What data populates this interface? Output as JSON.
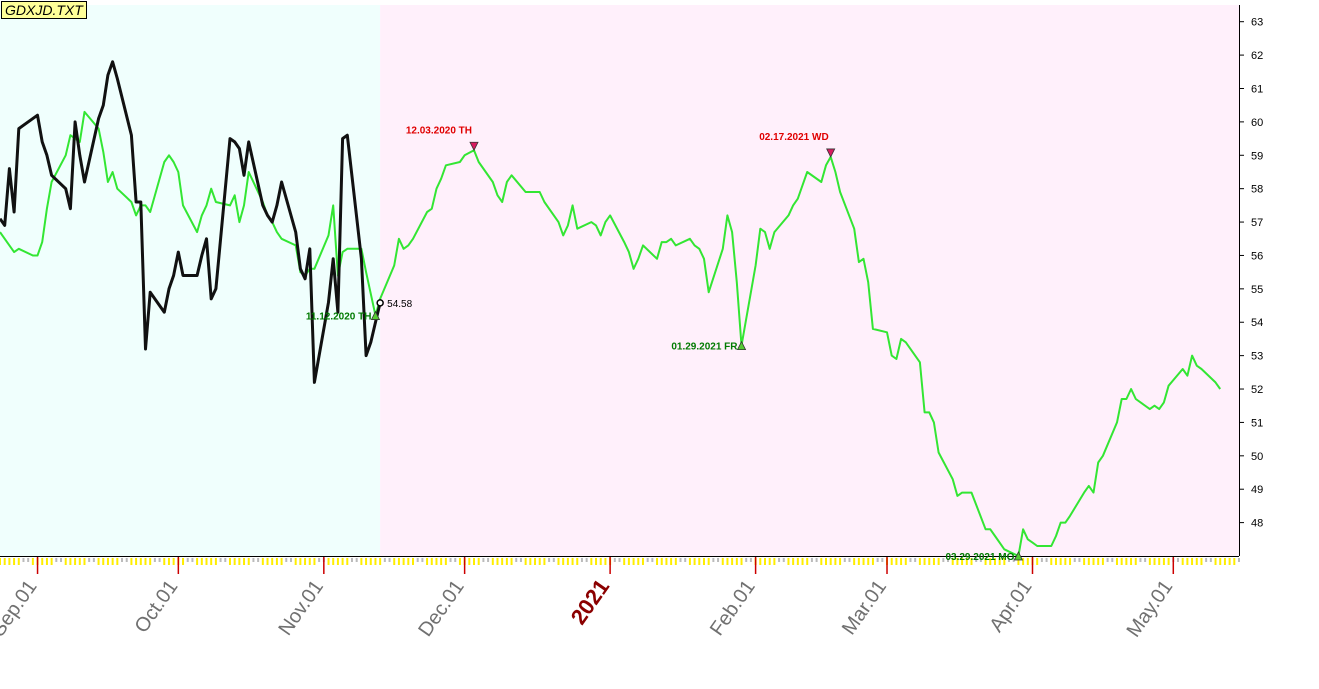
{
  "window": {
    "title": "GDXJD.TXT"
  },
  "colors": {
    "projection_bg": "#fff0fb",
    "history_bg": "#f0fffd",
    "green_line": "#33e633",
    "black_line": "#111111",
    "top_marker": "#d81b60",
    "top_label": "#e00000",
    "bottom_marker": "#55cc33",
    "bottom_label": "#007a00",
    "tick_yellow": "#ffee00",
    "tick_red": "#cc0000"
  },
  "chart_data": {
    "type": "line",
    "title": "GDXJD.TXT",
    "y_axis": {
      "position": "right",
      "range": [
        47,
        63.5
      ],
      "ticks": [
        48,
        49,
        50,
        51,
        52,
        53,
        54,
        55,
        56,
        57,
        58,
        59,
        60,
        61,
        62,
        63
      ]
    },
    "x_axis": {
      "range": [
        "2020-08-24",
        "2021-05-15"
      ],
      "tick_labels": [
        {
          "label": "Sep.01",
          "date": "2020-09-01",
          "style": "month"
        },
        {
          "label": "Oct.01",
          "date": "2020-10-01",
          "style": "month"
        },
        {
          "label": "Nov.01",
          "date": "2020-11-01",
          "style": "month"
        },
        {
          "label": "Dec.01",
          "date": "2020-12-01",
          "style": "month"
        },
        {
          "label": "2021",
          "date": "2021-01-01",
          "style": "year"
        },
        {
          "label": "Feb.01",
          "date": "2021-02-01",
          "style": "month"
        },
        {
          "label": "Mar.01",
          "date": "2021-03-01",
          "style": "month"
        },
        {
          "label": "Apr.01",
          "date": "2021-04-01",
          "style": "month"
        },
        {
          "label": "May.01",
          "date": "2021-05-01",
          "style": "month"
        }
      ]
    },
    "background_regions": [
      {
        "from": "2020-08-24",
        "to": "2020-11-13",
        "role": "history"
      },
      {
        "from": "2020-11-13",
        "to": "2021-05-15",
        "role": "projection"
      }
    ],
    "last_value_label": {
      "date": "2020-11-13",
      "value": 54.58,
      "text": "54.58"
    },
    "series": [
      {
        "role": "projection",
        "color": "green",
        "points": [
          [
            "2020-08-24",
            56.7
          ],
          [
            "2020-08-26",
            56.3
          ],
          [
            "2020-08-27",
            56.1
          ],
          [
            "2020-08-28",
            56.2
          ],
          [
            "2020-08-31",
            56.0
          ],
          [
            "2020-09-01",
            56.0
          ],
          [
            "2020-09-02",
            56.4
          ],
          [
            "2020-09-03",
            57.4
          ],
          [
            "2020-09-04",
            58.2
          ],
          [
            "2020-09-07",
            59.0
          ],
          [
            "2020-09-08",
            59.6
          ],
          [
            "2020-09-09",
            59.5
          ],
          [
            "2020-09-10",
            59.4
          ],
          [
            "2020-09-11",
            60.3
          ],
          [
            "2020-09-14",
            59.8
          ],
          [
            "2020-09-15",
            59.1
          ],
          [
            "2020-09-16",
            58.2
          ],
          [
            "2020-09-17",
            58.5
          ],
          [
            "2020-09-18",
            58.0
          ],
          [
            "2020-09-21",
            57.6
          ],
          [
            "2020-09-22",
            57.2
          ],
          [
            "2020-09-23",
            57.5
          ],
          [
            "2020-09-24",
            57.5
          ],
          [
            "2020-09-25",
            57.3
          ],
          [
            "2020-09-28",
            58.8
          ],
          [
            "2020-09-29",
            59.0
          ],
          [
            "2020-09-30",
            58.8
          ],
          [
            "2020-10-01",
            58.5
          ],
          [
            "2020-10-02",
            57.5
          ],
          [
            "2020-10-05",
            56.7
          ],
          [
            "2020-10-06",
            57.2
          ],
          [
            "2020-10-07",
            57.5
          ],
          [
            "2020-10-08",
            58.0
          ],
          [
            "2020-10-09",
            57.6
          ],
          [
            "2020-10-12",
            57.5
          ],
          [
            "2020-10-13",
            57.8
          ],
          [
            "2020-10-14",
            57.0
          ],
          [
            "2020-10-15",
            57.5
          ],
          [
            "2020-10-16",
            58.5
          ],
          [
            "2020-10-19",
            57.6
          ],
          [
            "2020-10-20",
            57.2
          ],
          [
            "2020-10-21",
            57.0
          ],
          [
            "2020-10-22",
            56.7
          ],
          [
            "2020-10-23",
            56.5
          ],
          [
            "2020-10-26",
            56.3
          ],
          [
            "2020-10-27",
            55.5
          ],
          [
            "2020-10-28",
            55.4
          ],
          [
            "2020-10-29",
            55.6
          ],
          [
            "2020-10-30",
            55.6
          ],
          [
            "2020-11-02",
            56.6
          ],
          [
            "2020-11-03",
            57.5
          ],
          [
            "2020-11-04",
            55.4
          ],
          [
            "2020-11-05",
            56.1
          ],
          [
            "2020-11-06",
            56.2
          ],
          [
            "2020-11-09",
            56.2
          ],
          [
            "2020-11-10",
            55.5
          ],
          [
            "2020-11-12",
            54.2
          ],
          [
            "2020-11-13",
            54.7
          ],
          [
            "2020-11-16",
            55.7
          ],
          [
            "2020-11-17",
            56.5
          ],
          [
            "2020-11-18",
            56.2
          ],
          [
            "2020-11-19",
            56.3
          ],
          [
            "2020-11-20",
            56.5
          ],
          [
            "2020-11-23",
            57.3
          ],
          [
            "2020-11-24",
            57.4
          ],
          [
            "2020-11-25",
            58.0
          ],
          [
            "2020-11-26",
            58.3
          ],
          [
            "2020-11-27",
            58.7
          ],
          [
            "2020-11-30",
            58.8
          ],
          [
            "2020-12-01",
            59.0
          ],
          [
            "2020-12-03",
            59.15
          ],
          [
            "2020-12-04",
            58.8
          ],
          [
            "2020-12-07",
            58.2
          ],
          [
            "2020-12-08",
            57.8
          ],
          [
            "2020-12-09",
            57.6
          ],
          [
            "2020-12-10",
            58.2
          ],
          [
            "2020-12-11",
            58.4
          ],
          [
            "2020-12-14",
            57.9
          ],
          [
            "2020-12-15",
            57.9
          ],
          [
            "2020-12-17",
            57.9
          ],
          [
            "2020-12-18",
            57.6
          ],
          [
            "2020-12-21",
            57.0
          ],
          [
            "2020-12-22",
            56.6
          ],
          [
            "2020-12-23",
            56.9
          ],
          [
            "2020-12-24",
            57.5
          ],
          [
            "2020-12-25",
            56.8
          ],
          [
            "2020-12-28",
            57.0
          ],
          [
            "2020-12-29",
            56.9
          ],
          [
            "2020-12-30",
            56.6
          ],
          [
            "2020-12-31",
            57.0
          ],
          [
            "2021-01-01",
            57.2
          ],
          [
            "2021-01-04",
            56.4
          ],
          [
            "2021-01-05",
            56.1
          ],
          [
            "2021-01-06",
            55.6
          ],
          [
            "2021-01-07",
            55.9
          ],
          [
            "2021-01-08",
            56.3
          ],
          [
            "2021-01-11",
            55.9
          ],
          [
            "2021-01-12",
            56.4
          ],
          [
            "2021-01-13",
            56.4
          ],
          [
            "2021-01-14",
            56.5
          ],
          [
            "2021-01-15",
            56.3
          ],
          [
            "2021-01-18",
            56.5
          ],
          [
            "2021-01-19",
            56.3
          ],
          [
            "2021-01-20",
            56.2
          ],
          [
            "2021-01-21",
            55.9
          ],
          [
            "2021-01-22",
            54.9
          ],
          [
            "2021-01-25",
            56.2
          ],
          [
            "2021-01-26",
            57.2
          ],
          [
            "2021-01-27",
            56.7
          ],
          [
            "2021-01-28",
            55.2
          ],
          [
            "2021-01-29",
            53.3
          ],
          [
            "2021-02-01",
            55.7
          ],
          [
            "2021-02-02",
            56.8
          ],
          [
            "2021-02-03",
            56.7
          ],
          [
            "2021-02-04",
            56.2
          ],
          [
            "2021-02-05",
            56.7
          ],
          [
            "2021-02-08",
            57.2
          ],
          [
            "2021-02-09",
            57.5
          ],
          [
            "2021-02-10",
            57.7
          ],
          [
            "2021-02-11",
            58.1
          ],
          [
            "2021-02-12",
            58.5
          ],
          [
            "2021-02-15",
            58.2
          ],
          [
            "2021-02-16",
            58.7
          ],
          [
            "2021-02-17",
            58.95
          ],
          [
            "2021-02-18",
            58.5
          ],
          [
            "2021-02-19",
            57.9
          ],
          [
            "2021-02-22",
            56.8
          ],
          [
            "2021-02-23",
            55.8
          ],
          [
            "2021-02-24",
            55.9
          ],
          [
            "2021-02-25",
            55.2
          ],
          [
            "2021-02-26",
            53.8
          ],
          [
            "2021-03-01",
            53.7
          ],
          [
            "2021-03-02",
            53.0
          ],
          [
            "2021-03-03",
            52.9
          ],
          [
            "2021-03-04",
            53.5
          ],
          [
            "2021-03-05",
            53.4
          ],
          [
            "2021-03-08",
            52.8
          ],
          [
            "2021-03-09",
            51.3
          ],
          [
            "2021-03-10",
            51.3
          ],
          [
            "2021-03-11",
            51.0
          ],
          [
            "2021-03-12",
            50.1
          ],
          [
            "2021-03-15",
            49.3
          ],
          [
            "2021-03-16",
            48.8
          ],
          [
            "2021-03-17",
            48.9
          ],
          [
            "2021-03-18",
            48.9
          ],
          [
            "2021-03-19",
            48.9
          ],
          [
            "2021-03-22",
            47.8
          ],
          [
            "2021-03-23",
            47.8
          ],
          [
            "2021-03-24",
            47.6
          ],
          [
            "2021-03-25",
            47.4
          ],
          [
            "2021-03-26",
            47.2
          ],
          [
            "2021-03-29",
            47.0
          ],
          [
            "2021-03-30",
            47.8
          ],
          [
            "2021-03-31",
            47.5
          ],
          [
            "2021-04-01",
            47.4
          ],
          [
            "2021-04-02",
            47.3
          ],
          [
            "2021-04-05",
            47.3
          ],
          [
            "2021-04-06",
            47.6
          ],
          [
            "2021-04-07",
            48.0
          ],
          [
            "2021-04-08",
            48.0
          ],
          [
            "2021-04-09",
            48.2
          ],
          [
            "2021-04-12",
            48.9
          ],
          [
            "2021-04-13",
            49.1
          ],
          [
            "2021-04-14",
            48.9
          ],
          [
            "2021-04-15",
            49.8
          ],
          [
            "2021-04-16",
            50.0
          ],
          [
            "2021-04-19",
            51.0
          ],
          [
            "2021-04-20",
            51.7
          ],
          [
            "2021-04-21",
            51.7
          ],
          [
            "2021-04-22",
            52.0
          ],
          [
            "2021-04-23",
            51.7
          ],
          [
            "2021-04-26",
            51.4
          ],
          [
            "2021-04-27",
            51.5
          ],
          [
            "2021-04-28",
            51.4
          ],
          [
            "2021-04-29",
            51.6
          ],
          [
            "2021-04-30",
            52.1
          ],
          [
            "2021-05-03",
            52.6
          ],
          [
            "2021-05-04",
            52.4
          ],
          [
            "2021-05-05",
            53.0
          ],
          [
            "2021-05-06",
            52.7
          ],
          [
            "2021-05-07",
            52.6
          ],
          [
            "2021-05-10",
            52.2
          ],
          [
            "2021-05-11",
            52.0
          ]
        ]
      },
      {
        "role": "actual",
        "color": "black",
        "points": [
          [
            "2020-08-24",
            57.1
          ],
          [
            "2020-08-25",
            56.9
          ],
          [
            "2020-08-26",
            58.6
          ],
          [
            "2020-08-27",
            57.3
          ],
          [
            "2020-08-28",
            59.8
          ],
          [
            "2020-09-01",
            60.2
          ],
          [
            "2020-09-02",
            59.4
          ],
          [
            "2020-09-03",
            59.0
          ],
          [
            "2020-09-04",
            58.4
          ],
          [
            "2020-09-07",
            58.0
          ],
          [
            "2020-09-08",
            57.4
          ],
          [
            "2020-09-09",
            60.0
          ],
          [
            "2020-09-10",
            59.0
          ],
          [
            "2020-09-11",
            58.2
          ],
          [
            "2020-09-14",
            60.1
          ],
          [
            "2020-09-15",
            60.5
          ],
          [
            "2020-09-16",
            61.4
          ],
          [
            "2020-09-17",
            61.8
          ],
          [
            "2020-09-18",
            61.3
          ],
          [
            "2020-09-21",
            59.6
          ],
          [
            "2020-09-22",
            57.6
          ],
          [
            "2020-09-23",
            57.6
          ],
          [
            "2020-09-24",
            53.2
          ],
          [
            "2020-09-25",
            54.9
          ],
          [
            "2020-09-28",
            54.3
          ],
          [
            "2020-09-29",
            55.0
          ],
          [
            "2020-09-30",
            55.4
          ],
          [
            "2020-10-01",
            56.1
          ],
          [
            "2020-10-02",
            55.4
          ],
          [
            "2020-10-05",
            55.4
          ],
          [
            "2020-10-06",
            56.0
          ],
          [
            "2020-10-07",
            56.5
          ],
          [
            "2020-10-08",
            54.7
          ],
          [
            "2020-10-09",
            55.0
          ],
          [
            "2020-10-12",
            59.5
          ],
          [
            "2020-10-13",
            59.4
          ],
          [
            "2020-10-14",
            59.2
          ],
          [
            "2020-10-15",
            58.4
          ],
          [
            "2020-10-16",
            59.4
          ],
          [
            "2020-10-19",
            57.5
          ],
          [
            "2020-10-20",
            57.2
          ],
          [
            "2020-10-21",
            57.0
          ],
          [
            "2020-10-22",
            57.5
          ],
          [
            "2020-10-23",
            58.2
          ],
          [
            "2020-10-26",
            56.7
          ],
          [
            "2020-10-27",
            55.6
          ],
          [
            "2020-10-28",
            55.3
          ],
          [
            "2020-10-29",
            56.2
          ],
          [
            "2020-10-30",
            52.2
          ],
          [
            "2020-11-02",
            54.6
          ],
          [
            "2020-11-03",
            55.9
          ],
          [
            "2020-11-04",
            54.3
          ],
          [
            "2020-11-05",
            59.5
          ],
          [
            "2020-11-06",
            59.6
          ],
          [
            "2020-11-09",
            55.9
          ],
          [
            "2020-11-10",
            53.0
          ],
          [
            "2020-11-11",
            53.4
          ],
          [
            "2020-11-12",
            54.0
          ],
          [
            "2020-11-13",
            54.58
          ]
        ]
      }
    ],
    "annotations": [
      {
        "kind": "top",
        "date": "2020-12-03",
        "value": 59.15,
        "text": "12.03.2020 TH"
      },
      {
        "kind": "top",
        "date": "2021-02-17",
        "value": 58.95,
        "text": "02.17.2021 WD"
      },
      {
        "kind": "bottom",
        "date": "2020-11-12",
        "value": 54.2,
        "text": "11.12.2020 TH"
      },
      {
        "kind": "bottom",
        "date": "2021-01-29",
        "value": 53.3,
        "text": "01.29.2021 FR"
      },
      {
        "kind": "bottom",
        "date": "2021-03-29",
        "value": 47.0,
        "text": "03.29.2021 MO"
      }
    ]
  }
}
